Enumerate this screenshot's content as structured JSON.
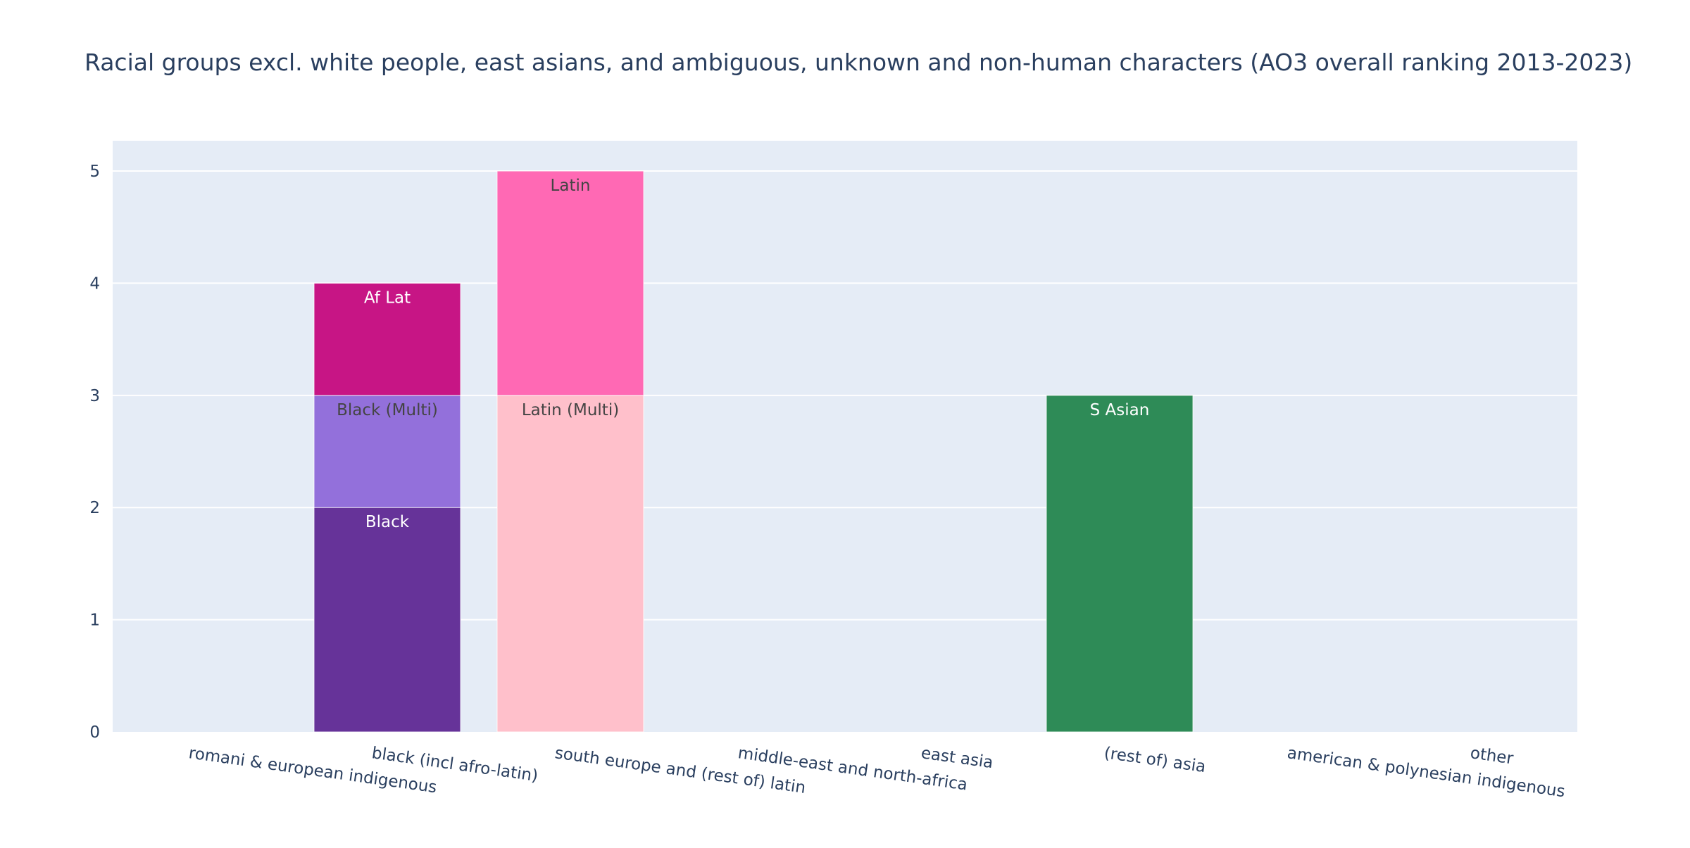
{
  "chart_data": {
    "type": "bar",
    "barmode": "stack",
    "title": "Racial groups excl. white people, east asians, and ambiguous, unknown and non-human characters (AO3 overall ranking 2013-2023)",
    "xlabel": "",
    "ylabel": "",
    "categories": [
      "romani & european indigenous",
      "black (incl afro-latin)",
      "south europe and (rest of) latin",
      "middle-east and north-africa",
      "east asia",
      "(rest of) asia",
      "american & polynesian indigenous",
      "other"
    ],
    "ylim": [
      0,
      5.27
    ],
    "yticks": [
      0,
      1,
      2,
      3,
      4,
      5
    ],
    "grid": true,
    "legend": "none",
    "plot_background": "#e5ecf6",
    "segments": [
      {
        "label": "Black",
        "category": "black (incl afro-latin)",
        "value": 2,
        "color": "#663399",
        "text_color": "#ffffff"
      },
      {
        "label": "Black (Multi)",
        "category": "black (incl afro-latin)",
        "value": 1,
        "color": "#9370db",
        "text_color": "#444444"
      },
      {
        "label": "Af Lat",
        "category": "black (incl afro-latin)",
        "value": 1,
        "color": "#c71585",
        "text_color": "#ffffff"
      },
      {
        "label": "Latin (Multi)",
        "category": "south europe and (rest of) latin",
        "value": 3,
        "color": "#ffc0cb",
        "text_color": "#444444"
      },
      {
        "label": "Latin",
        "category": "south europe and (rest of) latin",
        "value": 2,
        "color": "#ff69b4",
        "text_color": "#444444"
      },
      {
        "label": "S Asian",
        "category": "(rest of) asia",
        "value": 3,
        "color": "#2e8b57",
        "text_color": "#ffffff"
      }
    ]
  }
}
